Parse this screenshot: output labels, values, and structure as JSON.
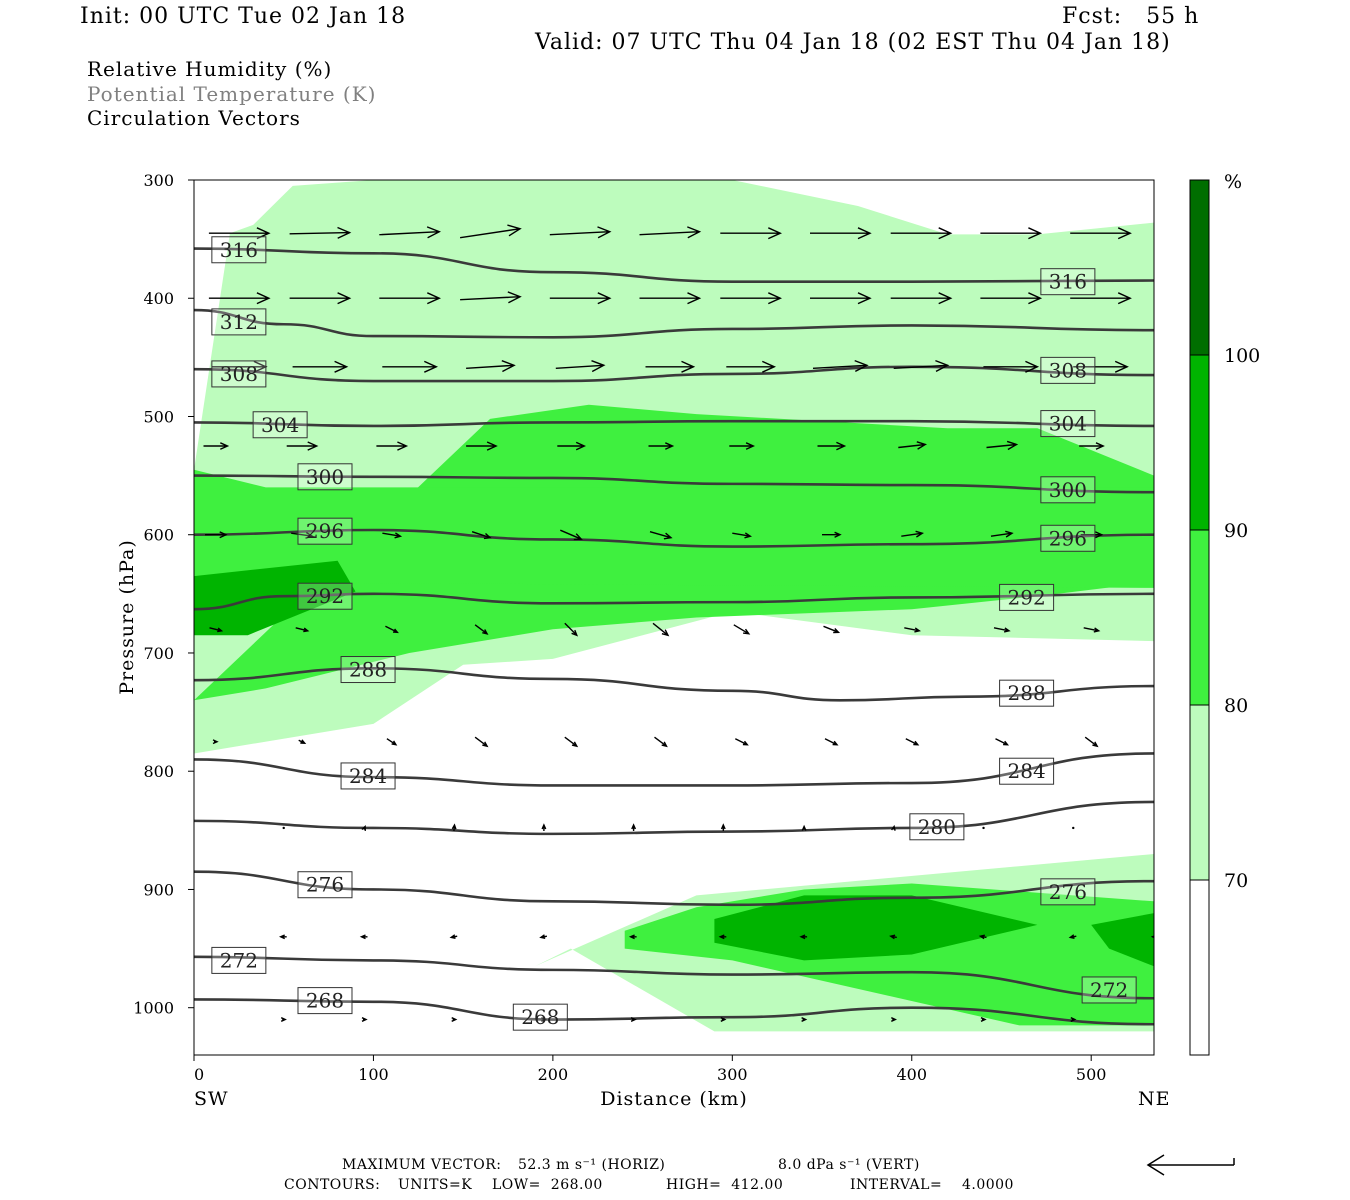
{
  "header": {
    "init": "Init: 00 UTC Tue 02 Jan 18",
    "fcst": "Fcst:   55 h",
    "valid": "Valid: 07 UTC Thu 04 Jan 18 (02 EST Thu 04 Jan 18)",
    "field1": "Relative Humidity (%)",
    "field2": "Potential Temperature (K)",
    "field3": "Circulation Vectors"
  },
  "footer": {
    "max_vector_label": "MAXIMUM VECTOR:",
    "max_horiz": "52.3 m s⁻¹ (HORIZ)",
    "max_vert": "8.0 dPa s⁻¹ (VERT)",
    "contours_label": "CONTOURS:",
    "units": "UNITS=K",
    "low": "LOW=  268.00",
    "high": "HIGH=  412.00",
    "interval": "INTERVAL=    4.0000"
  },
  "colors": {
    "rh_70": "#bdfcbd",
    "rh_80": "#3ff03f",
    "rh_90": "#00b400",
    "rh_100": "#006e00",
    "contour": "#3a3a3a"
  },
  "chart_data": {
    "type": "cross-section",
    "xlabel": "Distance (km)",
    "ylabel": "Pressure (hPa)",
    "xlim": [
      0,
      535
    ],
    "ylim": [
      1040,
      300
    ],
    "x_ticks": [
      0,
      100,
      200,
      300,
      400,
      500
    ],
    "y_ticks": [
      300,
      400,
      500,
      600,
      700,
      800,
      900,
      1000
    ],
    "x_start_label": "SW",
    "x_end_label": "NE",
    "colorbar": {
      "unit": "%",
      "levels": [
        70,
        80,
        90,
        100
      ]
    },
    "theta_contours": [
      {
        "value": 316,
        "x": [
          0,
          100,
          200,
          300,
          400,
          535
        ],
        "p": [
          358,
          362,
          378,
          386,
          386,
          385
        ],
        "labels": [
          [
            25,
            359
          ],
          [
            487,
            386
          ]
        ]
      },
      {
        "value": 312,
        "x": [
          0,
          50,
          100,
          200,
          300,
          400,
          535
        ],
        "p": [
          410,
          422,
          432,
          433,
          426,
          423,
          427
        ],
        "labels": [
          [
            25,
            420
          ]
        ]
      },
      {
        "value": 308,
        "x": [
          0,
          100,
          200,
          300,
          400,
          535
        ],
        "p": [
          460,
          470,
          470,
          464,
          458,
          465
        ],
        "labels": [
          [
            25,
            464
          ],
          [
            487,
            461
          ]
        ]
      },
      {
        "value": 304,
        "x": [
          0,
          100,
          200,
          300,
          400,
          535
        ],
        "p": [
          505,
          508,
          505,
          504,
          504,
          508
        ],
        "labels": [
          [
            48,
            507
          ],
          [
            487,
            506
          ]
        ]
      },
      {
        "value": 300,
        "x": [
          0,
          100,
          200,
          300,
          400,
          535
        ],
        "p": [
          550,
          551,
          552,
          557,
          558,
          564
        ],
        "labels": [
          [
            73,
            551
          ],
          [
            487,
            562
          ]
        ]
      },
      {
        "value": 296,
        "x": [
          0,
          100,
          200,
          300,
          400,
          535
        ],
        "p": [
          600,
          596,
          604,
          610,
          608,
          600
        ],
        "labels": [
          [
            73,
            597
          ],
          [
            487,
            603
          ]
        ]
      },
      {
        "value": 292,
        "x": [
          0,
          50,
          100,
          200,
          300,
          400,
          535
        ],
        "p": [
          663,
          652,
          650,
          658,
          657,
          653,
          650
        ],
        "labels": [
          [
            73,
            652
          ],
          [
            464,
            653
          ]
        ]
      },
      {
        "value": 288,
        "x": [
          0,
          100,
          200,
          300,
          360,
          430,
          535
        ],
        "p": [
          723,
          713,
          722,
          732,
          740,
          737,
          728
        ],
        "labels": [
          [
            97,
            714
          ],
          [
            464,
            734
          ]
        ]
      },
      {
        "value": 284,
        "x": [
          0,
          100,
          200,
          300,
          400,
          535
        ],
        "p": [
          790,
          805,
          812,
          812,
          810,
          785
        ],
        "labels": [
          [
            97,
            804
          ],
          [
            464,
            800
          ]
        ]
      },
      {
        "value": 280,
        "x": [
          0,
          100,
          200,
          300,
          400,
          535
        ],
        "p": [
          842,
          848,
          853,
          851,
          848,
          826
        ],
        "labels": [
          [
            414,
            847
          ]
        ]
      },
      {
        "value": 276,
        "x": [
          0,
          100,
          200,
          300,
          400,
          535
        ],
        "p": [
          885,
          900,
          910,
          913,
          907,
          893
        ],
        "labels": [
          [
            73,
            896
          ],
          [
            487,
            902
          ]
        ]
      },
      {
        "value": 272,
        "x": [
          0,
          100,
          200,
          300,
          400,
          535
        ],
        "p": [
          957,
          960,
          968,
          972,
          970,
          992
        ],
        "labels": [
          [
            25,
            960
          ],
          [
            510,
            985
          ]
        ]
      },
      {
        "value": 268,
        "x": [
          0,
          100,
          200,
          300,
          400,
          535
        ],
        "p": [
          993,
          995,
          1010,
          1008,
          1000,
          1014
        ],
        "labels": [
          [
            73,
            994
          ],
          [
            193,
            1008
          ]
        ]
      }
    ],
    "rh_regions": [
      {
        "level": 70,
        "x": [
          33,
          55,
          100,
          300,
          370,
          420,
          470,
          535,
          535,
          150,
          100,
          0,
          0,
          20
        ],
        "p": [
          338,
          305,
          300,
          300,
          322,
          346,
          346,
          336,
          550,
          550,
          590,
          590,
          545,
          345
        ]
      },
      {
        "level": 70,
        "x": [
          0,
          200,
          535,
          535,
          400,
          300,
          200,
          150,
          100,
          0
        ],
        "p": [
          560,
          560,
          580,
          690,
          685,
          665,
          705,
          710,
          760,
          785
        ]
      },
      {
        "level": 70,
        "x": [
          190,
          280,
          535,
          535,
          290,
          210
        ],
        "p": [
          965,
          905,
          870,
          1020,
          1020,
          950
        ]
      },
      {
        "level": 80,
        "x": [
          165,
          220,
          280,
          420,
          470,
          535,
          535,
          470,
          400,
          280,
          200,
          120,
          40,
          0
        ],
        "p": [
          502,
          490,
          498,
          510,
          510,
          550,
          640,
          652,
          663,
          670,
          680,
          700,
          730,
          740
        ]
      },
      {
        "level": 80,
        "x": [
          0,
          40,
          120,
          200,
          300,
          535,
          535,
          0
        ],
        "p": [
          545,
          560,
          560,
          560,
          560,
          560,
          645,
          640
        ]
      },
      {
        "level": 80,
        "x": [
          240,
          280,
          340,
          400,
          535,
          535,
          460,
          300,
          240
        ],
        "p": [
          935,
          915,
          900,
          895,
          910,
          1015,
          1015,
          960,
          950
        ]
      },
      {
        "level": 90,
        "x": [
          0,
          80,
          90,
          30,
          0
        ],
        "p": [
          635,
          622,
          648,
          685,
          685
        ]
      },
      {
        "level": 90,
        "x": [
          290,
          340,
          400,
          470,
          400,
          340,
          290
        ],
        "p": [
          925,
          905,
          905,
          930,
          955,
          960,
          945
        ]
      },
      {
        "level": 90,
        "x": [
          500,
          535,
          535,
          510
        ],
        "p": [
          930,
          920,
          965,
          950
        ]
      }
    ],
    "vector_rows": [
      {
        "p": 345,
        "x": [
          25,
          70,
          120,
          165,
          215,
          265,
          310,
          360,
          405,
          455,
          505
        ],
        "u": [
          1,
          1,
          1,
          1,
          1,
          1,
          1,
          1,
          1,
          1,
          1
        ],
        "w": [
          0,
          0.02,
          0.05,
          0.15,
          0.05,
          0.05,
          0,
          0,
          0,
          0,
          0
        ]
      },
      {
        "p": 400,
        "x": [
          25,
          70,
          120,
          165,
          215,
          265,
          310,
          360,
          405,
          455,
          505
        ],
        "u": [
          1,
          1,
          1,
          1,
          1,
          1,
          1,
          1,
          1,
          1,
          1
        ],
        "w": [
          0,
          0,
          0,
          0.05,
          0,
          0,
          0,
          0,
          0,
          0,
          0
        ]
      },
      {
        "p": 458,
        "x": [
          25,
          70,
          120,
          165,
          215,
          265,
          310,
          360,
          405,
          455,
          505
        ],
        "u": [
          0.9,
          0.9,
          0.9,
          0.8,
          0.8,
          0.8,
          0.8,
          0.9,
          0.9,
          0.9,
          0.9
        ],
        "w": [
          0,
          0,
          0,
          0.05,
          0.05,
          0,
          0,
          0.05,
          0.05,
          0,
          0
        ]
      },
      {
        "p": 525,
        "x": [
          12,
          60,
          110,
          160,
          210,
          260,
          305,
          355,
          400,
          450,
          500
        ],
        "u": [
          0.4,
          0.5,
          0.5,
          0.5,
          0.45,
          0.4,
          0.4,
          0.45,
          0.45,
          0.5,
          0.4
        ],
        "w": [
          0,
          0,
          0,
          0,
          0,
          0,
          0,
          0,
          0.05,
          0.05,
          0
        ]
      },
      {
        "p": 600,
        "x": [
          12,
          60,
          110,
          160,
          210,
          260,
          305,
          355,
          400,
          450,
          500
        ],
        "u": [
          0.35,
          0.35,
          0.3,
          0.3,
          0.35,
          0.35,
          0.3,
          0.3,
          0.35,
          0.35,
          0.35
        ],
        "w": [
          0,
          -0.05,
          -0.05,
          -0.1,
          -0.15,
          -0.1,
          -0.05,
          0,
          0.05,
          0.05,
          0
        ]
      },
      {
        "p": 680,
        "x": [
          12,
          60,
          110,
          160,
          210,
          260,
          305,
          355,
          400,
          450,
          500
        ],
        "u": [
          0.2,
          0.2,
          0.2,
          0.2,
          0.2,
          0.25,
          0.25,
          0.25,
          0.25,
          0.25,
          0.25
        ],
        "w": [
          -0.05,
          -0.05,
          -0.1,
          -0.15,
          -0.2,
          -0.2,
          -0.15,
          -0.1,
          -0.05,
          -0.05,
          -0.05
        ]
      },
      {
        "p": 775,
        "x": [
          12,
          60,
          110,
          160,
          210,
          260,
          305,
          355,
          400,
          450,
          500
        ],
        "u": [
          0.05,
          0.1,
          0.15,
          0.2,
          0.2,
          0.2,
          0.2,
          0.2,
          0.2,
          0.2,
          0.2
        ],
        "w": [
          0,
          -0.05,
          -0.1,
          -0.15,
          -0.15,
          -0.15,
          -0.1,
          -0.1,
          -0.1,
          -0.1,
          -0.15
        ]
      },
      {
        "p": 848,
        "x": [
          50,
          95,
          145,
          195,
          245,
          295,
          340,
          390,
          440,
          490
        ],
        "u": [
          0.02,
          0.02,
          0.01,
          0,
          0,
          0,
          0,
          0.01,
          0.01,
          0.01
        ],
        "w": [
          0,
          0.05,
          0.1,
          0.1,
          0.1,
          0.1,
          0.05,
          0.05,
          0,
          0
        ]
      },
      {
        "p": 940,
        "x": [
          50,
          95,
          145,
          195,
          245,
          295,
          340,
          390,
          440,
          490,
          535
        ],
        "u": [
          -0.1,
          -0.1,
          -0.1,
          -0.1,
          -0.1,
          -0.1,
          -0.1,
          -0.1,
          -0.1,
          -0.1,
          -0.05
        ],
        "w": [
          0,
          0,
          -0.02,
          -0.02,
          0,
          0,
          0,
          0.02,
          0.02,
          -0.02,
          0
        ]
      },
      {
        "p": 1010,
        "x": [
          50,
          95,
          145,
          195,
          245,
          295,
          340,
          390,
          440,
          490
        ],
        "u": [
          0.05,
          0.05,
          0.05,
          0.05,
          0.05,
          0.05,
          0.05,
          0.05,
          0.05,
          0.05
        ],
        "w": [
          0,
          0,
          0,
          0,
          0,
          0,
          0,
          0,
          0,
          0
        ]
      }
    ]
  }
}
